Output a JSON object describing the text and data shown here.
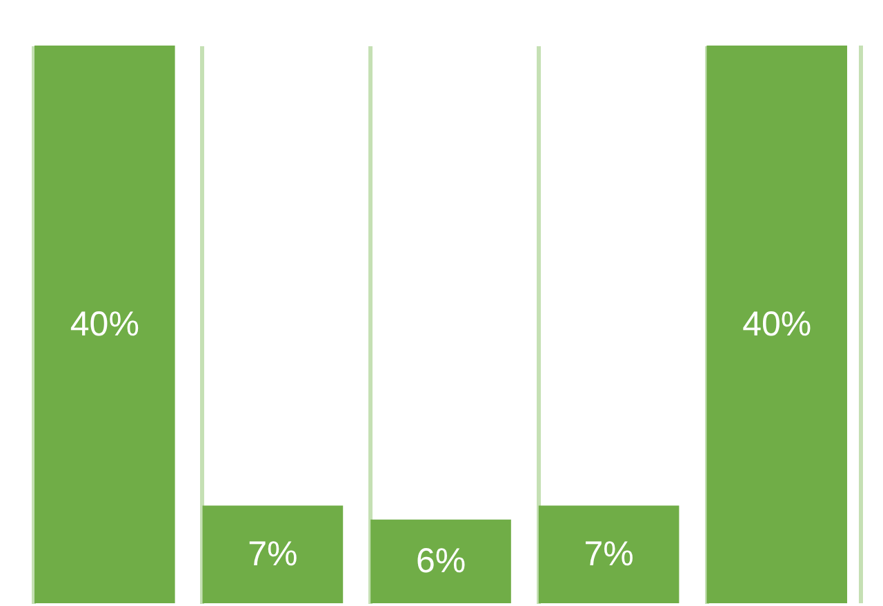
{
  "chart_data": {
    "type": "bar",
    "categories": [
      null,
      null,
      null,
      null,
      null
    ],
    "values": [
      40,
      7,
      6,
      7,
      40
    ],
    "value_labels": [
      "40%",
      "7%",
      "6%",
      "7%",
      "40%"
    ],
    "color": "#70ad47",
    "grid": "x"
  }
}
